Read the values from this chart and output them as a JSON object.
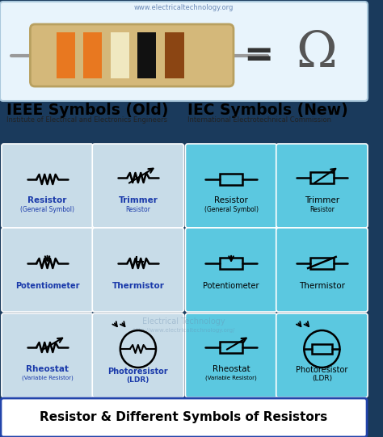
{
  "title_bottom": "Resistor & Different Symbols of Resistors",
  "ieee_title": "IEEE Symbols (Old)",
  "iec_title": "IEC Symbols (New)",
  "ieee_subtitle": "Institute of Electrical and Electronics Engineers",
  "iec_subtitle": "International Electrotechnical Commission",
  "bg_color": "#1a3a5c",
  "top_bg": "#e8f4fc",
  "ieee_box_color": "#c8dce8",
  "iec_box_color": "#5bc8e0",
  "label_color_ieee": "#1a3aaa",
  "label_color_iec": "#000000",
  "bottom_bar_color": "#ffffff",
  "bottom_bar_border": "#2244aa",
  "watermark": "www.electricaltechnology.org"
}
